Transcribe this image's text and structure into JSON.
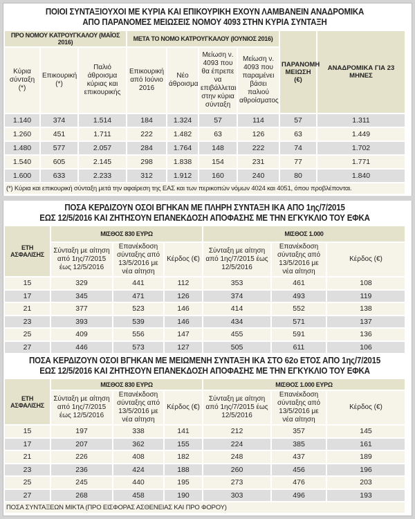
{
  "table1": {
    "title_lines": [
      "ΠΟΙΟΙ ΣΥΝΤΑΞΙΟΥΧΟΙ ΜΕ ΚΥΡΙΑ ΚΑΙ ΕΠΙΚΟΥΡΙΚΗ ΕΧΟΥΝ ΛΑΜΒΑΝΕΙΝ ΑΝΑΔΡΟΜΙΚΑ",
      "ΑΠΟ ΠΑΡΑΝΟΜΕΣ ΜΕΙΩΣΕΙΣ ΝΟΜΟΥ 4093 ΣΤΗΝ ΚΥΡΙΑ ΣΥΝΤΑΞΗ"
    ],
    "group_pre": "ΠΡΟ ΝΟΜΟΥ ΚΑΤΡΟΥΓΚΑΛΟΥ (ΜΑΪΟΣ 2016)",
    "group_post": "ΜΕΤΑ ΤΟ ΝΟΜΟ ΚΑΤΡΟΥΓΚΑΛΟΥ (ΙΟΥΝΙΟΣ 2016)",
    "headers": [
      "Κύρια σύνταξη (*)",
      "Επικουρική (*)",
      "Παλιό άθροισμα κύριας και επικουρικής",
      "Επικουρική από Ιούνιο 2016",
      "Νέο άθροισμα",
      "Μείωση ν. 4093 που θα έπρεπε να επιβάλλεται στην κύρια σύνταξη",
      "Μείωση ν. 4093 που παραμένει βάσει παλιού αθροίσματος",
      "ΠΑΡΑΝΟΜΗ ΜΕΙΩΣΗ (€)",
      "ΑΝΑΔΡΟΜΙΚΑ ΓΙΑ 23 ΜΗΝΕΣ"
    ],
    "rows": [
      [
        "1.140",
        "374",
        "1.514",
        "184",
        "1.324",
        "57",
        "114",
        "57",
        "1.311"
      ],
      [
        "1.260",
        "451",
        "1.711",
        "222",
        "1.482",
        "63",
        "126",
        "63",
        "1.449"
      ],
      [
        "1.480",
        "577",
        "2.057",
        "284",
        "1.764",
        "148",
        "222",
        "74",
        "1.702"
      ],
      [
        "1.540",
        "605",
        "2.145",
        "298",
        "1.838",
        "154",
        "231",
        "77",
        "1.771"
      ],
      [
        "1.600",
        "633",
        "2.233",
        "312",
        "1.912",
        "160",
        "240",
        "80",
        "1.840"
      ]
    ],
    "footnote": "(*) Κύρια και επικουρική σύνταξη μετά την αφαίρεση της ΕΑΣ και των περικοπών νόμων 4024 και 4051, όπου προβλέπονται."
  },
  "table2": {
    "title_lines": [
      "ΠΟΣΑ ΚΕΡΔΙΖΟΥΝ ΟΣΟΙ ΒΓΗΚΑΝ ΜΕ ΠΛΗΡΗ ΣΥΝΤΑΞΗ ΙΚΑ ΑΠΟ 1ης/7/2015",
      "ΕΩΣ 12/5/2016 ΚΑΙ ΖΗΤΗΣΟΥΝ ΕΠΑΝΕΚΔΟΣΗ ΑΠΟΦΑΣΗΣ ΜΕ ΤΗΝ ΕΓΚΥΚΛΙΟ ΤΟΥ ΕΦΚΑ"
    ],
    "years_header": "ΕΤΗ ΑΣΦΑΛΙΣΗΣ",
    "group_a": "ΜΙΣΘΟΣ 830 ΕΥΡΩ",
    "group_b": "ΜΙΣΘΟΣ 1.000",
    "headers": [
      "Σύνταξη με αίτηση από 1ης/7/2015 έως 12/5/2016",
      "Επανέκδοση σύνταξης από 13/5/2016 με νέα αίτηση",
      "Κέρδος (€)",
      "Σύνταξη με αίτηση από 1ης/7/2015 έως 12/5/2016",
      "Επανέκδοση σύνταξης από 13/5/2016 με νέα αίτηση",
      "Κέρδος (€)"
    ],
    "rows": [
      [
        "15",
        "329",
        "441",
        "112",
        "353",
        "461",
        "108"
      ],
      [
        "17",
        "345",
        "471",
        "126",
        "374",
        "493",
        "119"
      ],
      [
        "21",
        "377",
        "523",
        "146",
        "414",
        "552",
        "138"
      ],
      [
        "23",
        "393",
        "539",
        "146",
        "434",
        "571",
        "137"
      ],
      [
        "25",
        "409",
        "556",
        "147",
        "455",
        "591",
        "136"
      ],
      [
        "27",
        "446",
        "573",
        "127",
        "505",
        "611",
        "106"
      ]
    ]
  },
  "table3": {
    "title_lines": [
      "ΠΟΣΑ ΚΕΡΔΙΖΟΥΝ ΟΣΟΙ ΒΓΗΚΑΝ ΜΕ ΜΕΙΩΜΕΝΗ ΣΥΝΤΑΞΗ ΙΚΑ ΣΤΟ 62ο ΕΤΟΣ ΑΠΟ 1ης/7/2015",
      "ΕΩΣ 12/5/2016 ΚΑΙ ΖΗΤΗΣΟΥΝ ΕΠΑΝΕΚΔΟΣΗ ΑΠΟΦΑΣΗΣ ΜΕ ΤΗΝ ΕΓΚΥΚΛΙΟ ΤΟΥ ΕΦΚΑ"
    ],
    "years_header": "ΕΤΗ ΑΣΦΑΛΙΣΗΣ",
    "group_a": "ΜΙΣΘΟΣ 830 ΕΥΡΩ",
    "group_b": "ΜΙΣΘΟΣ 1.000 ΕΥΡΩ",
    "headers": [
      "Σύνταξη με αίτηση από 1ης/7/2015 έως 12/5/2016",
      "Επανέκδοση σύνταξης από 13/5/2016 με νέα αίτηση",
      "Κέρδος (€)",
      "Σύνταξη με αίτηση από 1ης/7/2015 έως 12/5/2016",
      "Επανέκδοση σύνταξης από 13/5/2016 με νέα αίτηση",
      "Κέρδος (€)"
    ],
    "rows": [
      [
        "15",
        "197",
        "338",
        "141",
        "212",
        "357",
        "145"
      ],
      [
        "17",
        "207",
        "362",
        "155",
        "224",
        "385",
        "161"
      ],
      [
        "21",
        "226",
        "408",
        "182",
        "248",
        "437",
        "189"
      ],
      [
        "23",
        "236",
        "424",
        "188",
        "260",
        "456",
        "196"
      ],
      [
        "25",
        "245",
        "440",
        "195",
        "273",
        "476",
        "203"
      ],
      [
        "27",
        "268",
        "458",
        "190",
        "303",
        "496",
        "193"
      ]
    ],
    "footnote": "ΠΟΣΑ ΣΥΝΤΑΞΕΩΝ ΜΙΚΤΑ (ΠΡΟ ΕΙΣΦΟΡΑΣ ΑΣΘΕΝΕΙΑΣ ΚΑΙ ΠΡΟ ΦΟΡΟΥ)"
  }
}
